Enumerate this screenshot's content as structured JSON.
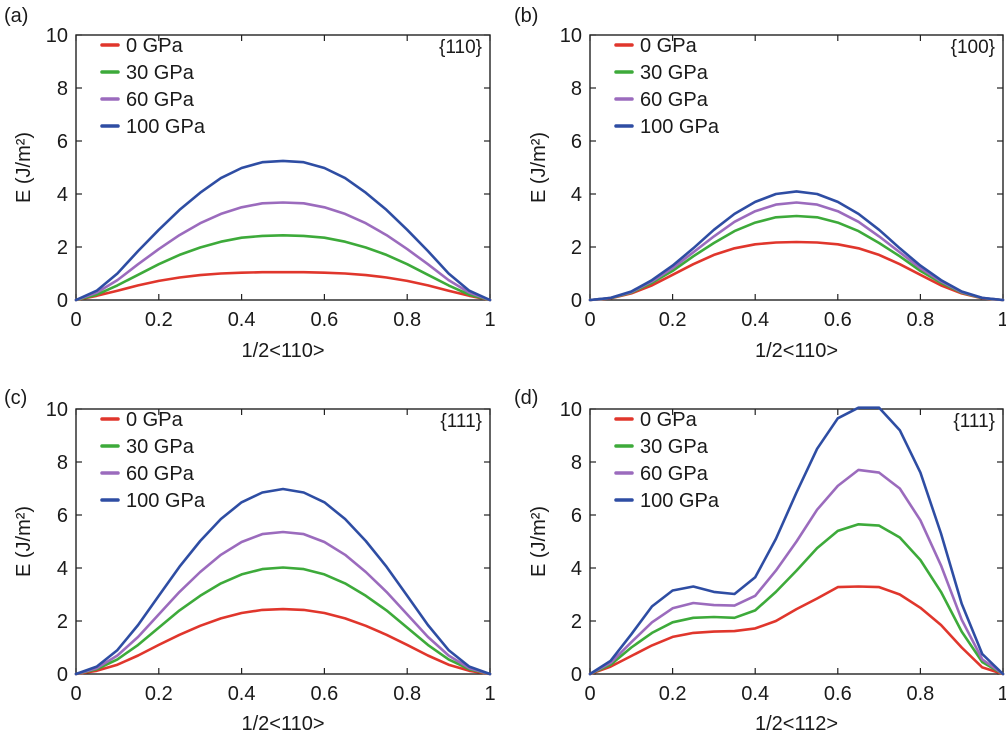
{
  "chart_data": [
    {
      "type": "line",
      "panel_label": "(a)",
      "plane": "{110}",
      "xlabel": "1/2<110>",
      "ylabel": "E (J/m²)",
      "xlim": [
        0,
        1
      ],
      "ylim": [
        0,
        10
      ],
      "xticks": [
        0,
        0.2,
        0.4,
        0.6,
        0.8,
        1
      ],
      "xtick_labels": [
        "0",
        "0.2",
        "0.4",
        "0.6",
        "0.8",
        "1"
      ],
      "yticks": [
        0,
        2,
        4,
        6,
        8,
        10
      ],
      "ytick_labels": [
        "0",
        "2",
        "4",
        "6",
        "8",
        "10"
      ],
      "legend_position": "top-left",
      "x": [
        0,
        0.05,
        0.1,
        0.15,
        0.2,
        0.25,
        0.3,
        0.35,
        0.4,
        0.45,
        0.5,
        0.55,
        0.6,
        0.65,
        0.7,
        0.75,
        0.8,
        0.85,
        0.9,
        0.95,
        1
      ],
      "series": [
        {
          "name": "0 GPa",
          "color": "#e0362c",
          "values": [
            0,
            0.16,
            0.35,
            0.55,
            0.72,
            0.85,
            0.94,
            1.0,
            1.03,
            1.05,
            1.05,
            1.05,
            1.03,
            1.0,
            0.94,
            0.85,
            0.72,
            0.55,
            0.35,
            0.16,
            0
          ]
        },
        {
          "name": "30 GPa",
          "color": "#3daa3a",
          "values": [
            0,
            0.2,
            0.55,
            0.95,
            1.35,
            1.7,
            1.98,
            2.2,
            2.35,
            2.42,
            2.44,
            2.42,
            2.35,
            2.2,
            1.98,
            1.7,
            1.35,
            0.95,
            0.55,
            0.2,
            0
          ]
        },
        {
          "name": "60 GPa",
          "color": "#9b6bbd",
          "values": [
            0,
            0.28,
            0.75,
            1.35,
            1.92,
            2.45,
            2.9,
            3.25,
            3.5,
            3.65,
            3.68,
            3.65,
            3.5,
            3.25,
            2.9,
            2.45,
            1.92,
            1.35,
            0.75,
            0.28,
            0
          ]
        },
        {
          "name": "100 GPa",
          "color": "#2e4da3",
          "values": [
            0,
            0.35,
            1.0,
            1.85,
            2.65,
            3.4,
            4.05,
            4.6,
            4.98,
            5.2,
            5.25,
            5.2,
            4.98,
            4.6,
            4.05,
            3.4,
            2.65,
            1.85,
            1.0,
            0.35,
            0
          ]
        }
      ]
    },
    {
      "type": "line",
      "panel_label": "(b)",
      "plane": "{100}",
      "xlabel": "1/2<110>",
      "ylabel": "E (J/m²)",
      "xlim": [
        0,
        1
      ],
      "ylim": [
        0,
        10
      ],
      "xticks": [
        0,
        0.2,
        0.4,
        0.6,
        0.8,
        1
      ],
      "xtick_labels": [
        "0",
        "0.2",
        "0.4",
        "0.6",
        "0.8",
        "1"
      ],
      "yticks": [
        0,
        2,
        4,
        6,
        8,
        10
      ],
      "ytick_labels": [
        "0",
        "2",
        "4",
        "6",
        "8",
        "10"
      ],
      "legend_position": "top-left",
      "x": [
        0,
        0.05,
        0.1,
        0.15,
        0.2,
        0.25,
        0.3,
        0.35,
        0.4,
        0.45,
        0.5,
        0.55,
        0.6,
        0.65,
        0.7,
        0.75,
        0.8,
        0.85,
        0.9,
        0.95,
        1
      ],
      "series": [
        {
          "name": "0 GPa",
          "color": "#e0362c",
          "values": [
            0,
            0.06,
            0.25,
            0.55,
            0.95,
            1.35,
            1.7,
            1.95,
            2.1,
            2.17,
            2.19,
            2.17,
            2.1,
            1.95,
            1.7,
            1.35,
            0.95,
            0.55,
            0.25,
            0.06,
            0
          ]
        },
        {
          "name": "30 GPa",
          "color": "#3daa3a",
          "values": [
            0,
            0.07,
            0.28,
            0.65,
            1.1,
            1.65,
            2.15,
            2.6,
            2.92,
            3.12,
            3.17,
            3.12,
            2.92,
            2.6,
            2.15,
            1.65,
            1.1,
            0.65,
            0.28,
            0.07,
            0
          ]
        },
        {
          "name": "60 GPa",
          "color": "#9b6bbd",
          "values": [
            0,
            0.08,
            0.3,
            0.7,
            1.2,
            1.8,
            2.4,
            2.95,
            3.35,
            3.6,
            3.68,
            3.6,
            3.35,
            2.95,
            2.4,
            1.8,
            1.2,
            0.7,
            0.3,
            0.08,
            0
          ]
        },
        {
          "name": "100 GPa",
          "color": "#2e4da3",
          "values": [
            0,
            0.08,
            0.32,
            0.75,
            1.3,
            1.95,
            2.65,
            3.25,
            3.7,
            4.0,
            4.1,
            4.0,
            3.7,
            3.25,
            2.65,
            1.95,
            1.3,
            0.75,
            0.32,
            0.08,
            0
          ]
        }
      ]
    },
    {
      "type": "line",
      "panel_label": "(c)",
      "plane": "{111}",
      "xlabel": "1/2<110>",
      "ylabel": "E (J/m²)",
      "xlim": [
        0,
        1
      ],
      "ylim": [
        0,
        10
      ],
      "xticks": [
        0,
        0.2,
        0.4,
        0.6,
        0.8,
        1
      ],
      "xtick_labels": [
        "0",
        "0.2",
        "0.4",
        "0.6",
        "0.8",
        "1"
      ],
      "yticks": [
        0,
        2,
        4,
        6,
        8,
        10
      ],
      "ytick_labels": [
        "0",
        "2",
        "4",
        "6",
        "8",
        "10"
      ],
      "legend_position": "top-left",
      "x": [
        0,
        0.05,
        0.1,
        0.15,
        0.2,
        0.25,
        0.3,
        0.35,
        0.4,
        0.45,
        0.5,
        0.55,
        0.6,
        0.65,
        0.7,
        0.75,
        0.8,
        0.85,
        0.9,
        0.95,
        1
      ],
      "series": [
        {
          "name": "0 GPa",
          "color": "#e0362c",
          "values": [
            0,
            0.12,
            0.35,
            0.7,
            1.1,
            1.48,
            1.82,
            2.1,
            2.3,
            2.42,
            2.45,
            2.42,
            2.3,
            2.1,
            1.82,
            1.48,
            1.1,
            0.7,
            0.35,
            0.12,
            0
          ]
        },
        {
          "name": "30 GPa",
          "color": "#3daa3a",
          "values": [
            0,
            0.18,
            0.55,
            1.1,
            1.75,
            2.4,
            2.95,
            3.42,
            3.76,
            3.96,
            4.02,
            3.96,
            3.76,
            3.42,
            2.95,
            2.4,
            1.75,
            1.1,
            0.55,
            0.18,
            0
          ]
        },
        {
          "name": "60 GPa",
          "color": "#9b6bbd",
          "values": [
            0,
            0.22,
            0.7,
            1.4,
            2.25,
            3.1,
            3.85,
            4.5,
            4.98,
            5.28,
            5.36,
            5.28,
            4.98,
            4.5,
            3.85,
            3.1,
            2.25,
            1.4,
            0.7,
            0.22,
            0
          ]
        },
        {
          "name": "100 GPa",
          "color": "#2e4da3",
          "values": [
            0,
            0.28,
            0.9,
            1.85,
            2.95,
            4.05,
            5.02,
            5.85,
            6.48,
            6.85,
            6.98,
            6.85,
            6.48,
            5.85,
            5.02,
            4.05,
            2.95,
            1.85,
            0.9,
            0.28,
            0
          ]
        }
      ]
    },
    {
      "type": "line",
      "panel_label": "(d)",
      "plane": "{111}",
      "xlabel": "1/2<112>",
      "ylabel": "E (J/m²)",
      "xlim": [
        0,
        1
      ],
      "ylim": [
        0,
        10
      ],
      "xticks": [
        0,
        0.2,
        0.4,
        0.6,
        0.8,
        1
      ],
      "xtick_labels": [
        "0",
        "0.2",
        "0.4",
        "0.6",
        "0.8",
        "1"
      ],
      "yticks": [
        0,
        2,
        4,
        6,
        8,
        10
      ],
      "ytick_labels": [
        "0",
        "2",
        "4",
        "6",
        "8",
        "10"
      ],
      "legend_position": "top-left",
      "x": [
        0,
        0.05,
        0.1,
        0.15,
        0.2,
        0.25,
        0.3,
        0.35,
        0.4,
        0.45,
        0.5,
        0.55,
        0.6,
        0.65,
        0.7,
        0.75,
        0.8,
        0.85,
        0.9,
        0.95,
        1
      ],
      "series": [
        {
          "name": "0 GPa",
          "color": "#e0362c",
          "values": [
            0,
            0.28,
            0.68,
            1.08,
            1.4,
            1.55,
            1.6,
            1.62,
            1.72,
            2.0,
            2.45,
            2.85,
            3.28,
            3.3,
            3.28,
            3.0,
            2.5,
            1.85,
            1.0,
            0.25,
            0
          ]
        },
        {
          "name": "30 GPa",
          "color": "#3daa3a",
          "values": [
            0,
            0.35,
            1.0,
            1.55,
            1.95,
            2.12,
            2.15,
            2.12,
            2.4,
            3.1,
            3.9,
            4.75,
            5.4,
            5.65,
            5.6,
            5.15,
            4.3,
            3.1,
            1.6,
            0.45,
            0
          ]
        },
        {
          "name": "60 GPa",
          "color": "#9b6bbd",
          "values": [
            0,
            0.42,
            1.2,
            1.95,
            2.48,
            2.68,
            2.6,
            2.58,
            2.95,
            3.9,
            5.0,
            6.2,
            7.1,
            7.7,
            7.6,
            7.0,
            5.8,
            4.1,
            2.05,
            0.55,
            0
          ]
        },
        {
          "name": "100 GPa",
          "color": "#2e4da3",
          "values": [
            0,
            0.5,
            1.5,
            2.55,
            3.15,
            3.3,
            3.1,
            3.02,
            3.65,
            5.1,
            6.85,
            8.5,
            9.65,
            10.05,
            10.05,
            9.2,
            7.6,
            5.3,
            2.65,
            0.75,
            0
          ]
        }
      ]
    }
  ]
}
